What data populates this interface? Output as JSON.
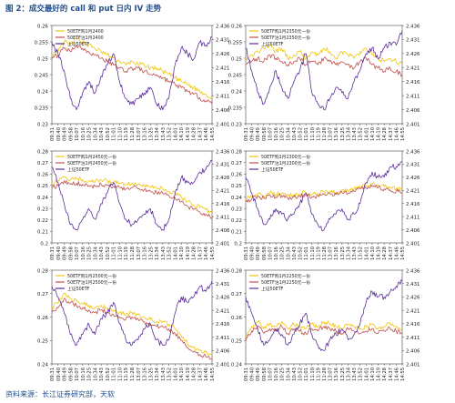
{
  "figure": {
    "title": "图 2：成交最好的 call 和 put 日内 IV 走势",
    "source": "资料来源：长江证券研究部，天软"
  },
  "colors": {
    "series1": "#f2c40c",
    "series2": "#c0504d",
    "series3": "#5b2d9a",
    "axis": "#444444",
    "grid": "#d9d9d9",
    "title": "#1f4e8c"
  },
  "x_ticks": [
    "09:31",
    "09:40",
    "09:49",
    "09:58",
    "10:07",
    "10:16",
    "10:25",
    "10:34",
    "10:43",
    "10:52",
    "11:01",
    "11:10",
    "11:19",
    "11:28",
    "13:07",
    "13:16",
    "13:25",
    "13:34",
    "13:43",
    "13:52",
    "14:01",
    "14:10",
    "14:19",
    "14:28",
    "14:37",
    "14:46",
    "14:55"
  ],
  "chart_data": [
    {
      "type": "line",
      "ylim_left": [
        0.23,
        0.26
      ],
      "yticks_left": [
        "0.23",
        "0.235",
        "0.24",
        "0.245",
        "0.25",
        "0.255",
        "0.26"
      ],
      "ylim_right": [
        2.401,
        2.436
      ],
      "yticks_right": [
        "2.401",
        "2.406",
        "2.411",
        "2.416",
        "2.421",
        "2.426",
        "2.431",
        "2.436"
      ],
      "series": [
        {
          "name": "50ETF购1月2400",
          "axis": "left",
          "values": [
            0.251,
            0.252,
            0.255,
            0.254,
            0.256,
            0.255,
            0.254,
            0.253,
            0.252,
            0.251,
            0.25,
            0.249,
            0.248,
            0.249,
            0.248,
            0.248,
            0.247,
            0.247,
            0.246,
            0.245,
            0.244,
            0.243,
            0.242,
            0.241,
            0.24,
            0.239,
            0.238
          ]
        },
        {
          "name": "50ETF沽1月2400",
          "axis": "left",
          "values": [
            0.25,
            0.251,
            0.253,
            0.252,
            0.254,
            0.253,
            0.252,
            0.251,
            0.25,
            0.249,
            0.248,
            0.247,
            0.246,
            0.247,
            0.247,
            0.246,
            0.245,
            0.245,
            0.244,
            0.243,
            0.242,
            0.241,
            0.24,
            0.239,
            0.238,
            0.237,
            0.236
          ]
        },
        {
          "name": "上证50ETF",
          "axis": "right",
          "values": [
            2.43,
            2.426,
            2.42,
            2.41,
            2.406,
            2.412,
            2.416,
            2.412,
            2.418,
            2.422,
            2.426,
            2.416,
            2.41,
            2.408,
            2.41,
            2.412,
            2.414,
            2.408,
            2.406,
            2.41,
            2.422,
            2.428,
            2.426,
            2.424,
            2.43,
            2.429,
            2.432
          ]
        }
      ]
    },
    {
      "type": "line",
      "ylim_left": [
        0.23,
        0.26
      ],
      "yticks_left": [
        "0.23",
        "0.235",
        "0.24",
        "0.245",
        "0.25",
        "0.255",
        "0.26"
      ],
      "ylim_right": [
        2.401,
        2.436
      ],
      "yticks_right": [
        "2.401",
        "2.406",
        "2.411",
        "2.416",
        "2.421",
        "2.426",
        "2.431",
        "2.436"
      ],
      "series": [
        {
          "name": "50ETF购1月2350元一份",
          "axis": "left",
          "values": [
            0.25,
            0.251,
            0.252,
            0.253,
            0.254,
            0.252,
            0.253,
            0.25,
            0.251,
            0.252,
            0.25,
            0.252,
            0.251,
            0.253,
            0.252,
            0.25,
            0.252,
            0.251,
            0.25,
            0.252,
            0.253,
            0.251,
            0.25,
            0.249,
            0.25,
            0.249,
            0.248
          ]
        },
        {
          "name": "50ETF沽1月2350元一份",
          "axis": "left",
          "values": [
            0.248,
            0.249,
            0.25,
            0.249,
            0.251,
            0.25,
            0.249,
            0.248,
            0.249,
            0.25,
            0.248,
            0.249,
            0.248,
            0.25,
            0.249,
            0.248,
            0.249,
            0.248,
            0.247,
            0.249,
            0.25,
            0.248,
            0.247,
            0.246,
            0.247,
            0.246,
            0.245
          ]
        },
        {
          "name": "上证50ETF",
          "axis": "right",
          "values": [
            2.428,
            2.42,
            2.412,
            2.408,
            2.414,
            2.42,
            2.414,
            2.41,
            2.416,
            2.42,
            2.426,
            2.412,
            2.408,
            2.406,
            2.41,
            2.414,
            2.412,
            2.41,
            2.416,
            2.42,
            2.426,
            2.428,
            2.424,
            2.428,
            2.43,
            2.429,
            2.434
          ]
        }
      ]
    },
    {
      "type": "line",
      "ylim_left": [
        0.2,
        0.28
      ],
      "yticks_left": [
        "0.2",
        "0.21",
        "0.22",
        "0.23",
        "0.24",
        "0.25",
        "0.26",
        "0.27",
        "0.28"
      ],
      "ylim_right": [
        2.401,
        2.436
      ],
      "yticks_right": [
        "2.401",
        "2.406",
        "2.411",
        "2.416",
        "2.421",
        "2.426",
        "2.431",
        "2.436"
      ],
      "series": [
        {
          "name": "50ETF购1月2450元一份",
          "axis": "left",
          "values": [
            0.252,
            0.254,
            0.258,
            0.255,
            0.256,
            0.255,
            0.254,
            0.253,
            0.255,
            0.254,
            0.253,
            0.252,
            0.251,
            0.252,
            0.251,
            0.25,
            0.249,
            0.248,
            0.247,
            0.245,
            0.243,
            0.24,
            0.236,
            0.233,
            0.231,
            0.229,
            0.226
          ]
        },
        {
          "name": "50ETF沽1月2450元一份",
          "axis": "left",
          "values": [
            0.248,
            0.25,
            0.254,
            0.251,
            0.252,
            0.251,
            0.25,
            0.249,
            0.251,
            0.25,
            0.249,
            0.248,
            0.247,
            0.248,
            0.247,
            0.246,
            0.245,
            0.244,
            0.243,
            0.241,
            0.239,
            0.236,
            0.232,
            0.229,
            0.227,
            0.225,
            0.222
          ]
        },
        {
          "name": "上证50ETF",
          "axis": "right",
          "values": [
            2.43,
            2.424,
            2.416,
            2.408,
            2.406,
            2.41,
            2.414,
            2.41,
            2.416,
            2.42,
            2.424,
            2.416,
            2.41,
            2.408,
            2.41,
            2.412,
            2.414,
            2.408,
            2.406,
            2.41,
            2.42,
            2.426,
            2.424,
            2.424,
            2.428,
            2.429,
            2.432
          ]
        }
      ]
    },
    {
      "type": "line",
      "ylim_left": [
        0.2,
        0.28
      ],
      "yticks_left": [
        "0.2",
        "0.21",
        "0.22",
        "0.23",
        "0.24",
        "0.25",
        "0.26",
        "0.27",
        "0.28"
      ],
      "ylim_right": [
        2.401,
        2.436
      ],
      "yticks_right": [
        "2.401",
        "2.406",
        "2.411",
        "2.416",
        "2.421",
        "2.426",
        "2.431",
        "2.436"
      ],
      "series": [
        {
          "name": "50ETF购1月2300元一份",
          "axis": "left",
          "values": [
            0.238,
            0.24,
            0.243,
            0.241,
            0.244,
            0.242,
            0.243,
            0.241,
            0.242,
            0.243,
            0.244,
            0.242,
            0.243,
            0.244,
            0.245,
            0.244,
            0.246,
            0.245,
            0.247,
            0.249,
            0.25,
            0.251,
            0.25,
            0.249,
            0.248,
            0.247,
            0.246
          ]
        },
        {
          "name": "50ETF沽1月2300元一份",
          "axis": "left",
          "values": [
            0.236,
            0.238,
            0.241,
            0.239,
            0.242,
            0.24,
            0.241,
            0.239,
            0.24,
            0.241,
            0.242,
            0.24,
            0.241,
            0.242,
            0.243,
            0.242,
            0.244,
            0.243,
            0.245,
            0.247,
            0.248,
            0.249,
            0.248,
            0.247,
            0.246,
            0.245,
            0.244
          ]
        },
        {
          "name": "上证50ETF",
          "axis": "right",
          "values": [
            2.426,
            2.42,
            2.414,
            2.408,
            2.41,
            2.414,
            2.412,
            2.41,
            2.412,
            2.416,
            2.42,
            2.412,
            2.408,
            2.406,
            2.41,
            2.412,
            2.414,
            2.41,
            2.412,
            2.416,
            2.424,
            2.428,
            2.426,
            2.426,
            2.43,
            2.43,
            2.432
          ]
        }
      ]
    },
    {
      "type": "line",
      "ylim_left": [
        0.24,
        0.28
      ],
      "yticks_left": [
        "0.24",
        "0.25",
        "0.26",
        "0.27",
        "0.28"
      ],
      "ylim_right": [
        2.401,
        2.436
      ],
      "yticks_right": [
        "2.401",
        "2.406",
        "2.411",
        "2.416",
        "2.421",
        "2.426",
        "2.431",
        "2.436"
      ],
      "series": [
        {
          "name": "50ETF购1月2500元一份",
          "axis": "left",
          "values": [
            0.264,
            0.266,
            0.27,
            0.268,
            0.267,
            0.266,
            0.265,
            0.264,
            0.265,
            0.264,
            0.263,
            0.262,
            0.261,
            0.262,
            0.261,
            0.26,
            0.259,
            0.258,
            0.258,
            0.257,
            0.255,
            0.252,
            0.249,
            0.247,
            0.246,
            0.245,
            0.244
          ]
        },
        {
          "name": "50ETF沽1月2500元一份",
          "axis": "left",
          "values": [
            0.262,
            0.264,
            0.268,
            0.266,
            0.265,
            0.264,
            0.263,
            0.262,
            0.263,
            0.262,
            0.261,
            0.26,
            0.259,
            0.26,
            0.259,
            0.258,
            0.257,
            0.256,
            0.256,
            0.255,
            0.253,
            0.25,
            0.247,
            0.245,
            0.244,
            0.243,
            0.242
          ]
        },
        {
          "name": "上证50ETF",
          "axis": "right",
          "values": [
            2.43,
            2.426,
            2.42,
            2.412,
            2.408,
            2.412,
            2.416,
            2.412,
            2.418,
            2.42,
            2.424,
            2.416,
            2.41,
            2.408,
            2.41,
            2.414,
            2.416,
            2.41,
            2.408,
            2.41,
            2.42,
            2.426,
            2.424,
            2.426,
            2.43,
            2.428,
            2.432
          ]
        }
      ]
    },
    {
      "type": "line",
      "ylim_left": [
        0.24,
        0.28
      ],
      "yticks_left": [
        "0.24",
        "0.25",
        "0.26",
        "0.27",
        "0.28"
      ],
      "ylim_right": [
        2.401,
        2.436
      ],
      "yticks_right": [
        "2.401",
        "2.406",
        "2.411",
        "2.416",
        "2.421",
        "2.426",
        "2.431",
        "2.436"
      ],
      "series": [
        {
          "name": "50ETF购1月2250元一份",
          "axis": "left",
          "values": [
            0.252,
            0.256,
            0.258,
            0.255,
            0.257,
            0.256,
            0.258,
            0.255,
            0.257,
            0.256,
            0.255,
            0.257,
            0.256,
            0.258,
            0.257,
            0.256,
            0.255,
            0.257,
            0.256,
            0.255,
            0.256,
            0.257,
            0.255,
            0.256,
            0.257,
            0.256,
            0.255
          ]
        },
        {
          "name": "50ETF沽1月2250元一份",
          "axis": "left",
          "values": [
            0.25,
            0.254,
            0.256,
            0.253,
            0.255,
            0.254,
            0.256,
            0.253,
            0.255,
            0.254,
            0.253,
            0.255,
            0.254,
            0.256,
            0.255,
            0.254,
            0.253,
            0.255,
            0.254,
            0.253,
            0.254,
            0.255,
            0.253,
            0.254,
            0.255,
            0.254,
            0.253
          ]
        },
        {
          "name": "上证50ETF",
          "axis": "right",
          "values": [
            2.426,
            2.42,
            2.414,
            2.408,
            2.41,
            2.414,
            2.412,
            2.408,
            2.412,
            2.416,
            2.42,
            2.412,
            2.408,
            2.406,
            2.41,
            2.412,
            2.414,
            2.41,
            2.412,
            2.416,
            2.424,
            2.428,
            2.426,
            2.426,
            2.428,
            2.43,
            2.432
          ]
        }
      ]
    }
  ]
}
